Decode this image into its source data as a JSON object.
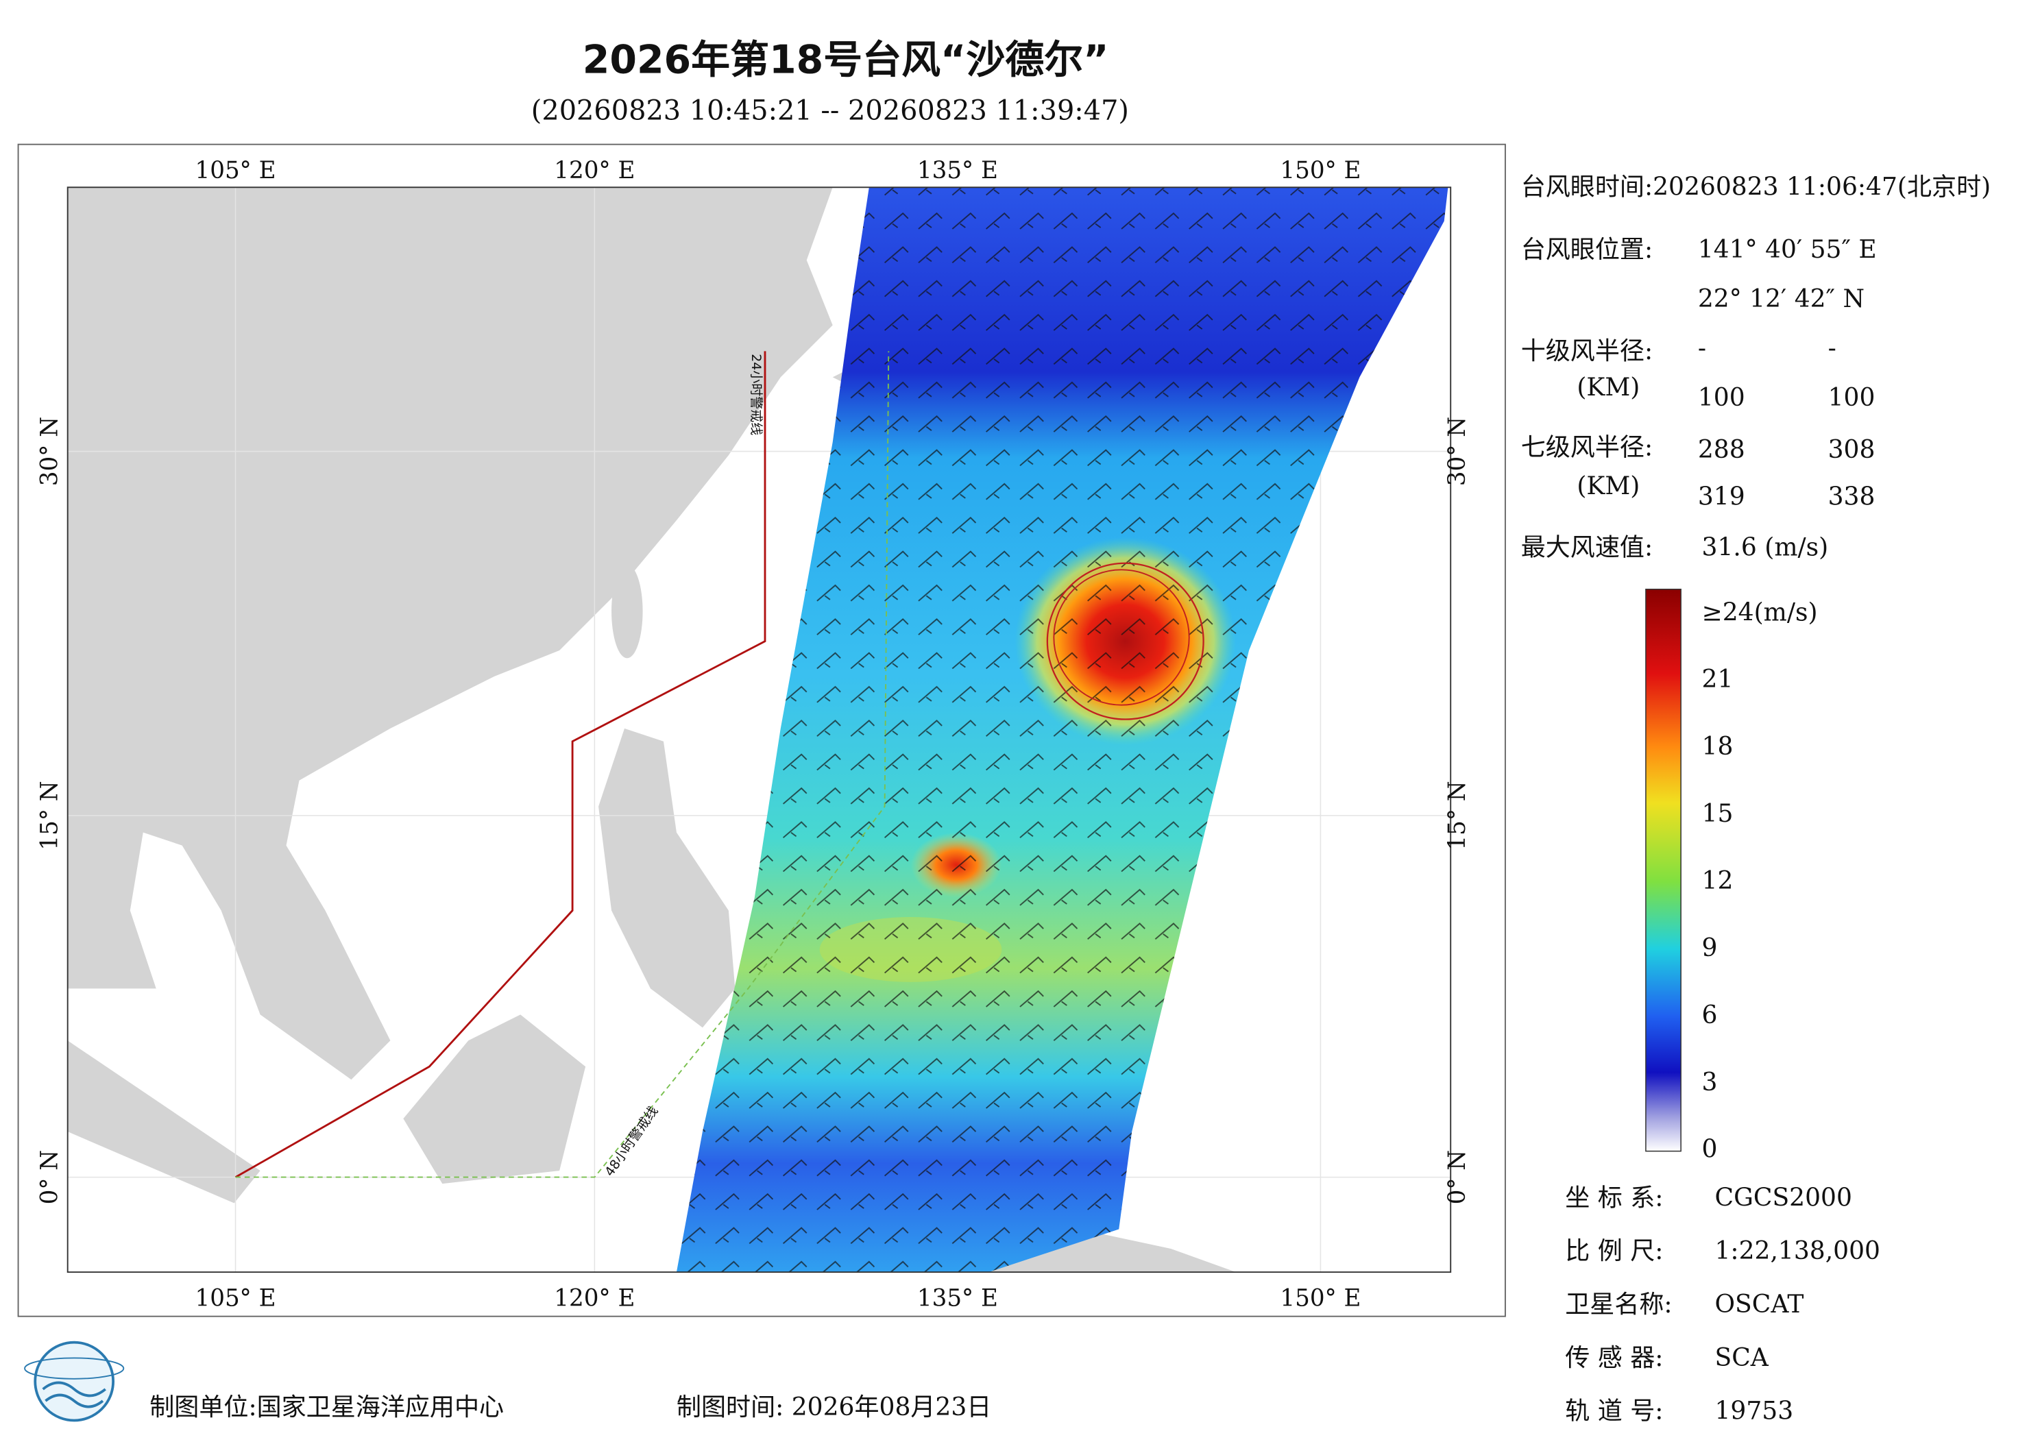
{
  "header": {
    "title": "2026年第18号台风“沙德尔”",
    "subtitle": "(20260823 10:45:21 -- 20260823 11:39:47)"
  },
  "map": {
    "top_labels": [
      "105° E",
      "120° E",
      "135° E",
      "150° E"
    ],
    "bottom_labels": [
      "105° E",
      "120° E",
      "135° E",
      "150° E"
    ],
    "left_labels": [
      "30° N",
      "15° N",
      "0° N"
    ],
    "right_labels": [
      "30° N",
      "15° N",
      "0° N"
    ],
    "warning_lines": [
      "24小时警戒线",
      "48小时警戒线"
    ]
  },
  "info": {
    "eye_time": "台风眼时间:20260823 11:06:47(北京时)",
    "eye_position": {
      "label": "台风眼位置:",
      "lon": "141° 40′ 55″ E",
      "lat": "22° 12′ 42″ N"
    },
    "r10": {
      "label": "十级风半径:",
      "unit": "(KM)",
      "values": [
        "-",
        "-",
        "100",
        "100"
      ]
    },
    "r7": {
      "label": "七级风半径:",
      "unit": "(KM)",
      "values": [
        "288",
        "308",
        "319",
        "338"
      ]
    },
    "max_wind": {
      "label": "最大风速值:",
      "value": "31.6  (m/s)"
    }
  },
  "colorbar": {
    "labels": [
      "≥24(m/s)",
      "21",
      "18",
      "15",
      "12",
      "9",
      "6",
      "3",
      "0"
    ]
  },
  "meta": [
    {
      "label": "坐 标 系:",
      "value": "CGCS2000"
    },
    {
      "label": "比 例 尺:",
      "value": "1:22,138,000"
    },
    {
      "label": "卫星名称:",
      "value": "OSCAT"
    },
    {
      "label": "传 感 器:",
      "value": "SCA"
    },
    {
      "label": "轨 道 号:",
      "value": "19753"
    }
  ],
  "footer": {
    "unit": "制图单位:国家卫星海洋应用中心",
    "time": "制图时间:  2026年08月23日"
  }
}
